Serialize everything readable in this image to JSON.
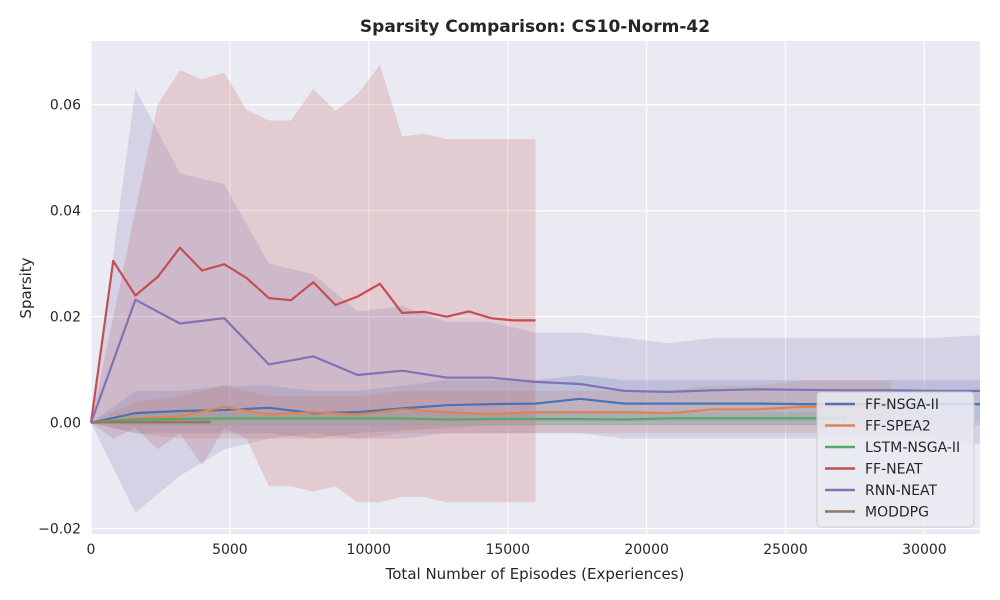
{
  "chart_data": {
    "type": "line",
    "title": "Sparsity Comparison: CS10-Norm-42",
    "xlabel": "Total Number of Episodes (Experiences)",
    "ylabel": "Sparsity",
    "xlim": [
      0,
      32000
    ],
    "ylim": [
      -0.021,
      0.072
    ],
    "xticks": [
      0,
      5000,
      10000,
      15000,
      20000,
      25000,
      30000
    ],
    "xtick_labels": [
      "0",
      "5000",
      "10000",
      "15000",
      "20000",
      "25000",
      "30000"
    ],
    "yticks": [
      -0.02,
      0.0,
      0.02,
      0.04,
      0.06
    ],
    "ytick_labels": [
      "−0.02",
      "0.00",
      "0.02",
      "0.04",
      "0.06"
    ],
    "grid": true,
    "legend_position": "bottom-right",
    "background": "#eaeaf2",
    "series": [
      {
        "name": "FF-NSGA-II",
        "color": "#4c72b0",
        "x": [
          0,
          1600,
          3200,
          4800,
          6400,
          8000,
          9600,
          11200,
          12800,
          14400,
          16000,
          17600,
          19200,
          20800,
          22400,
          24000,
          25600,
          27200,
          28800,
          30400,
          32000
        ],
        "y": [
          0,
          0.0018,
          0.0022,
          0.0024,
          0.0028,
          0.0018,
          0.002,
          0.0027,
          0.0033,
          0.0035,
          0.0036,
          0.0045,
          0.0036,
          0.0036,
          0.0036,
          0.0036,
          0.0035,
          0.0035,
          0.0035,
          0.0035,
          0.0035
        ],
        "lower": [
          0,
          -0.002,
          -0.002,
          -0.002,
          -0.002,
          -0.003,
          -0.002,
          -0.0015,
          -0.001,
          -0.0005,
          -0.0005,
          -0.0005,
          -0.0005,
          -0.0005,
          -0.0005,
          -0.0005,
          -0.0005,
          -0.0005,
          -0.0005,
          -0.0005,
          -0.0005
        ],
        "upper": [
          0,
          0.006,
          0.006,
          0.007,
          0.007,
          0.006,
          0.006,
          0.007,
          0.008,
          0.008,
          0.008,
          0.009,
          0.008,
          0.008,
          0.008,
          0.008,
          0.008,
          0.008,
          0.008,
          0.008,
          0.008
        ]
      },
      {
        "name": "FF-SPEA2",
        "color": "#dd8452",
        "x": [
          0,
          1600,
          3200,
          4800,
          6400,
          8000,
          9600,
          11200,
          12800,
          14400,
          16000,
          17600,
          19200,
          20800,
          22400,
          24000,
          25600,
          27200,
          28800
        ],
        "y": [
          0,
          0.0008,
          0.0012,
          0.003,
          0.0015,
          0.002,
          0.0015,
          0.0025,
          0.002,
          0.0016,
          0.002,
          0.002,
          0.002,
          0.0018,
          0.0025,
          0.0025,
          0.003,
          0.003,
          0.003
        ],
        "lower": [
          0,
          -0.002,
          -0.003,
          -0.003,
          -0.003,
          -0.003,
          -0.003,
          -0.002,
          -0.002,
          -0.002,
          -0.002,
          -0.002,
          -0.002,
          -0.002,
          -0.002,
          -0.002,
          -0.002,
          -0.002,
          -0.002
        ],
        "upper": [
          0,
          0.004,
          0.005,
          0.007,
          0.005,
          0.005,
          0.005,
          0.006,
          0.006,
          0.006,
          0.006,
          0.006,
          0.006,
          0.006,
          0.007,
          0.007,
          0.008,
          0.008,
          0.008
        ]
      },
      {
        "name": "LSTM-NSGA-II",
        "color": "#55a868",
        "x": [
          0,
          1600,
          3200,
          4800,
          6400,
          8000,
          9600,
          11200,
          12800,
          14400,
          16000,
          17600,
          19200,
          20800,
          22400,
          24000,
          25600,
          27200
        ],
        "y": [
          0,
          0.0006,
          0.0007,
          0.0008,
          0.0008,
          0.0008,
          0.0008,
          0.0008,
          0.0006,
          0.0007,
          0.0007,
          0.0007,
          0.0006,
          0.0008,
          0.0008,
          0.0008,
          0.0008,
          0.0008
        ],
        "lower": [
          0,
          -0.0005,
          -0.0005,
          -0.0005,
          -0.0005,
          -0.0005,
          -0.0005,
          -0.0005,
          -0.0005,
          -0.0005,
          -0.0005,
          -0.0005,
          -0.0005,
          -0.0005,
          -0.0005,
          -0.0005,
          -0.0005,
          -0.0005
        ],
        "upper": [
          0,
          0.002,
          0.002,
          0.002,
          0.002,
          0.002,
          0.002,
          0.002,
          0.002,
          0.002,
          0.002,
          0.002,
          0.002,
          0.002,
          0.002,
          0.002,
          0.002,
          0.002
        ]
      },
      {
        "name": "FF-NEAT",
        "color": "#c44e52",
        "x": [
          0,
          800,
          1600,
          2400,
          3200,
          4000,
          4800,
          5600,
          6400,
          7200,
          8000,
          8800,
          9600,
          10400,
          11200,
          12000,
          12800,
          13600,
          14400,
          15200,
          16000
        ],
        "y": [
          0,
          0.0305,
          0.024,
          0.0275,
          0.033,
          0.0287,
          0.0299,
          0.0273,
          0.0235,
          0.0231,
          0.0265,
          0.0222,
          0.0238,
          0.0262,
          0.0207,
          0.0209,
          0.02,
          0.021,
          0.0197,
          0.0193,
          0.0193
        ],
        "lower": [
          0,
          -0.003,
          -0.001,
          -0.005,
          -0.002,
          -0.008,
          -0.001,
          -0.003,
          -0.012,
          -0.012,
          -0.013,
          -0.012,
          -0.015,
          -0.015,
          -0.014,
          -0.014,
          -0.015,
          -0.015,
          -0.015,
          -0.015,
          -0.015
        ],
        "upper": [
          0,
          0.02,
          0.04,
          0.06,
          0.0665,
          0.0648,
          0.066,
          0.059,
          0.057,
          0.057,
          0.063,
          0.0588,
          0.062,
          0.0675,
          0.054,
          0.0545,
          0.0535,
          0.0535,
          0.0535,
          0.0535,
          0.0535
        ]
      },
      {
        "name": "RNN-NEAT",
        "color": "#8172b3",
        "x": [
          0,
          1600,
          3200,
          4800,
          6400,
          8000,
          9600,
          11200,
          12800,
          14400,
          16000,
          17600,
          19200,
          20800,
          22400,
          24000,
          25600,
          27200,
          28800,
          30400,
          32000
        ],
        "y": [
          0,
          0.0232,
          0.0187,
          0.0197,
          0.011,
          0.0125,
          0.009,
          0.0098,
          0.0085,
          0.0085,
          0.0077,
          0.0073,
          0.006,
          0.0058,
          0.0061,
          0.0063,
          0.0062,
          0.0061,
          0.0061,
          0.006,
          0.006
        ],
        "lower": [
          0,
          -0.017,
          -0.01,
          -0.005,
          -0.003,
          -0.002,
          -0.003,
          -0.003,
          -0.002,
          -0.002,
          -0.002,
          -0.002,
          -0.003,
          -0.003,
          -0.003,
          -0.003,
          -0.003,
          -0.003,
          -0.003,
          -0.003,
          -0.004
        ],
        "upper": [
          0,
          0.063,
          0.047,
          0.045,
          0.03,
          0.028,
          0.021,
          0.022,
          0.019,
          0.019,
          0.017,
          0.017,
          0.016,
          0.015,
          0.016,
          0.016,
          0.016,
          0.016,
          0.016,
          0.016,
          0.0165
        ]
      },
      {
        "name": "MODDPG",
        "color": "#937860",
        "x": [
          0,
          800,
          1600,
          2400,
          3200,
          4300
        ],
        "y": [
          0,
          0.0001,
          0.0001,
          0.0001,
          0.0001,
          0.0001
        ],
        "lower": [
          0,
          -0.0003,
          -0.0003,
          -0.0003,
          -0.0003,
          -0.0003
        ],
        "upper": [
          0,
          0.0005,
          0.0005,
          0.0005,
          0.0005,
          0.0005
        ]
      }
    ]
  }
}
